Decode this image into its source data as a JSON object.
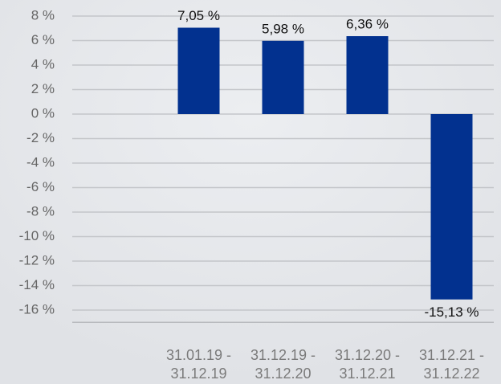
{
  "chart_data": {
    "type": "bar",
    "categories": [
      null,
      [
        "31.01.19 -",
        "31.12.19"
      ],
      [
        "31.12.19 -",
        "31.12.20"
      ],
      [
        "31.12.20 -",
        "31.12.21"
      ],
      [
        "31.12.21 -",
        "31.12.22"
      ]
    ],
    "values": [
      null,
      7.05,
      5.98,
      6.36,
      -15.13
    ],
    "value_labels": [
      null,
      "7,05 %",
      "5,98 %",
      "6,36 %",
      "-15,13 %"
    ],
    "color": "#02318f",
    "ylim": [
      -17,
      8
    ],
    "yticks": [
      {
        "value": 8,
        "label": "8 %"
      },
      {
        "value": 6,
        "label": "6 %"
      },
      {
        "value": 4,
        "label": "4 %"
      },
      {
        "value": 2,
        "label": "2 %"
      },
      {
        "value": 0,
        "label": "0 %"
      },
      {
        "value": -2,
        "label": "-2 %"
      },
      {
        "value": -4,
        "label": "-4 %"
      },
      {
        "value": -6,
        "label": "-6 %"
      },
      {
        "value": -8,
        "label": "-8 %"
      },
      {
        "value": -10,
        "label": "-10 %"
      },
      {
        "value": -12,
        "label": "-12 %"
      },
      {
        "value": -14,
        "label": "-14 %"
      },
      {
        "value": -16,
        "label": "-16 %"
      }
    ],
    "grid": true
  }
}
